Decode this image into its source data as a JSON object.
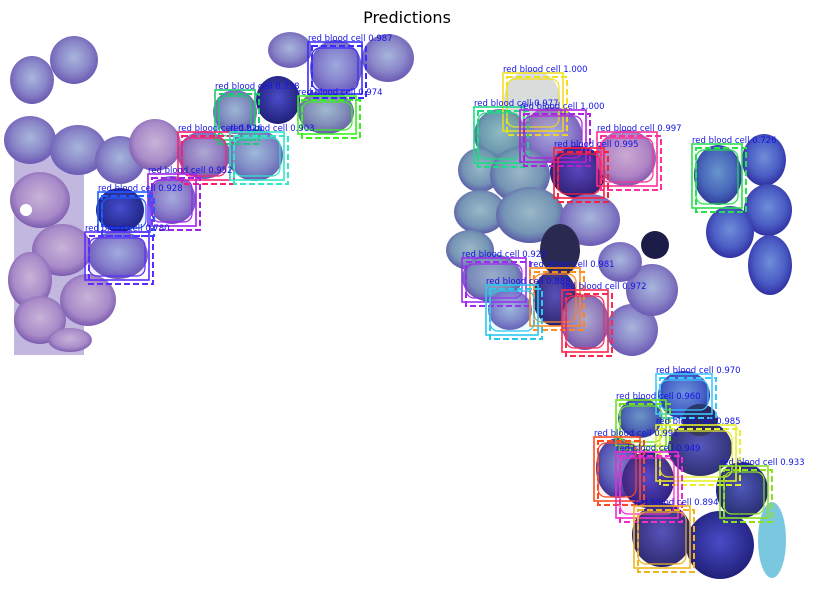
{
  "figure": {
    "title": "Predictions"
  },
  "detections": [
    {
      "label": "red blood cell 0.987",
      "color": "#3a2cff"
    },
    {
      "label": "red blood cell 0.738",
      "color": "#1ec86e"
    },
    {
      "label": "red blood cell 0.974",
      "color": "#3cf020"
    },
    {
      "label": "red blood cell 0.926",
      "color": "#ff1e6e"
    },
    {
      "label": "red blood cell 0.903",
      "color": "#2ee8c8"
    },
    {
      "label": "red blood cell 0.952",
      "color": "#a020f0"
    },
    {
      "label": "red blood cell 0.928",
      "color": "#1e5aff"
    },
    {
      "label": "red blood cell 0.780",
      "color": "#5a2cff"
    },
    {
      "label": "red blood cell 1.000",
      "color": "#f0e020"
    },
    {
      "label": "red blood cell 0.977",
      "color": "#1edc82"
    },
    {
      "label": "red blood cell 1.000",
      "color": "#b020e0"
    },
    {
      "label": "red blood cell 0.997",
      "color": "#ff2e9a"
    },
    {
      "label": "red blood cell 0.995",
      "color": "#ff1e3c"
    },
    {
      "label": "red blood cell 0.726",
      "color": "#28e050"
    },
    {
      "label": "red blood cell 0.920",
      "color": "#a028f0"
    },
    {
      "label": "red blood cell 0.981",
      "color": "#ff8c1e"
    },
    {
      "label": "red blood cell 0.888",
      "color": "#28c8f0"
    },
    {
      "label": "red blood cell 0.972",
      "color": "#ff2850"
    },
    {
      "label": "red blood cell 0.970",
      "color": "#3cc8ff"
    },
    {
      "label": "red blood cell 0.960",
      "color": "#6ee01e"
    },
    {
      "label": "red blood cell 0.985",
      "color": "#e6f028"
    },
    {
      "label": "red blood cell 0.991",
      "color": "#ff4a1e"
    },
    {
      "label": "red blood cell 0.933",
      "color": "#8ce01e"
    },
    {
      "label": "red blood cell 0.949",
      "color": "#f028d2"
    },
    {
      "label": "red blood cell 0.894",
      "color": "#f0b41e"
    }
  ]
}
